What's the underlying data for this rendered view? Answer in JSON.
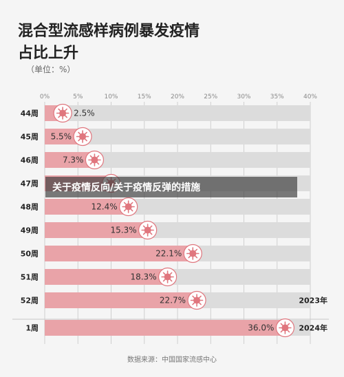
{
  "chart_data": {
    "type": "bar",
    "orientation": "horizontal",
    "title_lines": [
      "混合型流感样病例暴发疫情",
      "占比上升"
    ],
    "unit": "（单位：%）",
    "x_ticks": [
      "0%",
      "5%",
      "10%",
      "15%",
      "20%",
      "25%",
      "30%",
      "35%",
      "40%"
    ],
    "xlim": [
      0,
      40
    ],
    "categories": [
      "44周",
      "45周",
      "46周",
      "47周",
      "48周",
      "49周",
      "50周",
      "51周",
      "52周",
      "1周"
    ],
    "values": [
      2.5,
      5.5,
      7.3,
      9.8,
      12.4,
      15.3,
      22.1,
      18.3,
      22.7,
      36.0
    ],
    "data_labels": [
      "2.5%",
      "5.5%",
      "7.3%",
      "",
      "12.4%",
      "15.3%",
      "22.1%",
      "18.3%",
      "22.7%",
      "36.0%"
    ],
    "year_labels": [
      {
        "after_category": "52周",
        "text": "2023年"
      },
      {
        "after_category": "1周",
        "text": "2024年"
      }
    ],
    "source": "数据来源：中国国家流感中心",
    "colors": {
      "bar": "#e9a3a8",
      "track": "#dcdcdc",
      "icon": "#e0767e"
    },
    "grid": true
  },
  "overlay_caption": "关于疫情反向/关于疫情反弹的措施"
}
